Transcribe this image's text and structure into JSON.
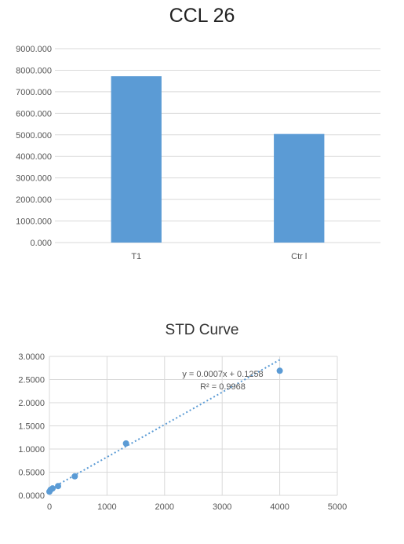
{
  "chart_data": [
    {
      "type": "bar",
      "title": "CCL 26",
      "categories": [
        "T1",
        "Ctr l"
      ],
      "values": [
        7720,
        5040
      ],
      "ylim": [
        0,
        9000
      ],
      "yticks": [
        "0.000",
        "1000.000",
        "2000.000",
        "3000.000",
        "4000.000",
        "5000.000",
        "6000.000",
        "7000.000",
        "8000.000",
        "9000.000"
      ],
      "grid": true,
      "bar_color": "#5b9bd5"
    },
    {
      "type": "scatter",
      "title": "STD Curve",
      "points": [
        {
          "x": 0,
          "y": 0.08
        },
        {
          "x": 20,
          "y": 0.12
        },
        {
          "x": 55,
          "y": 0.15
        },
        {
          "x": 150,
          "y": 0.2
        },
        {
          "x": 440,
          "y": 0.41
        },
        {
          "x": 1330,
          "y": 1.12
        },
        {
          "x": 4000,
          "y": 2.69
        }
      ],
      "xlim": [
        0,
        5000
      ],
      "ylim": [
        0,
        3
      ],
      "xticks": [
        "0",
        "1000",
        "2000",
        "3000",
        "4000",
        "5000"
      ],
      "yticks": [
        "0.0000",
        "0.5000",
        "1.0000",
        "1.5000",
        "2.0000",
        "2.5000",
        "3.0000"
      ],
      "trendline": {
        "slope": 0.0007,
        "intercept": 0.1258,
        "style": "dotted"
      },
      "equation": "y = 0.0007x + 0.1258",
      "r_squared": "R² = 0.9968",
      "grid": true,
      "marker_color": "#5b9bd5"
    }
  ]
}
